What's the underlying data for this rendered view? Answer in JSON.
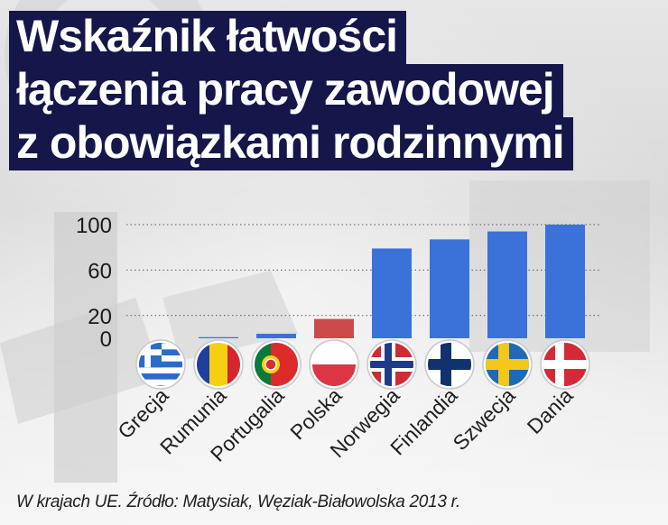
{
  "title_lines": [
    "Wskaźnik łatwości",
    "łączenia pracy zawodowej",
    "z obowiązkami rodzinnymi"
  ],
  "footer": "W krajach UE. Źródło: Matysiak, Węziak-Białowolska 2013 r.",
  "colors": {
    "title_bg": "#15174a",
    "bar_default": "#3b72d9",
    "bar_highlight": "#cc4a48"
  },
  "chart_data": {
    "type": "bar",
    "categories": [
      "Grecja",
      "Rumunia",
      "Portugalia",
      "Polska",
      "Norwegia",
      "Finlandia",
      "Szwecja",
      "Dania"
    ],
    "values": [
      0,
      1,
      4,
      17,
      79,
      87,
      94,
      100
    ],
    "highlight": "Polska",
    "yticks": [
      "0",
      "20",
      "60",
      "100"
    ],
    "ylim": [
      0,
      100
    ],
    "grid": true,
    "flags": [
      "greece-flag-icon",
      "romania-flag-icon",
      "portugal-flag-icon",
      "poland-flag-icon",
      "norway-flag-icon",
      "finland-flag-icon",
      "sweden-flag-icon",
      "denmark-flag-icon"
    ]
  }
}
